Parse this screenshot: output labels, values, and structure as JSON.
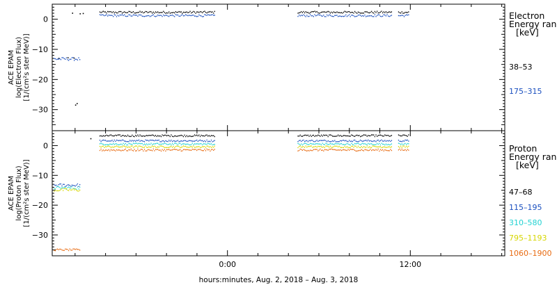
{
  "chart_data": [
    {
      "type": "scatter",
      "ylabel": [
        "ACE EPAM",
        "log(Electron Flux)",
        "[1/(cm²s ster MeV)]"
      ],
      "ylim": [
        -37,
        5
      ],
      "yticks": [
        0,
        -10,
        -20,
        -30
      ],
      "xlim": [
        -11.5,
        18.2
      ],
      "legend_title": [
        "Electron",
        "Energy range",
        "[keV]"
      ],
      "series": [
        {
          "name": "38–53",
          "color": "#000000",
          "segments": [
            {
              "x": [
                -8.4,
                -0.8
              ],
              "y": 2.3,
              "jitter": 0.35
            },
            {
              "x": [
                4.6,
                10.8
              ],
              "y": 2.3,
              "jitter": 0.35
            },
            {
              "x": [
                11.2,
                11.9
              ],
              "y": 2.3,
              "jitter": 0.35
            }
          ],
          "points": [
            [
              -10.2,
              2.0
            ],
            [
              -9.7,
              1.8
            ],
            [
              -9.5,
              1.9
            ],
            [
              -11.1,
              -13.0
            ],
            [
              -10.5,
              -12.8
            ],
            [
              -10.1,
              -12.9
            ],
            [
              -9.9,
              -28.0
            ],
            [
              -10.0,
              -28.5
            ]
          ]
        },
        {
          "name": "175–315",
          "color": "#1a4fbf",
          "segments": [
            {
              "x": [
                -11.4,
                -9.7
              ],
              "y": -13.2,
              "jitter": 0.5
            },
            {
              "x": [
                -8.4,
                -0.8
              ],
              "y": 1.2,
              "jitter": 0.35
            },
            {
              "x": [
                4.6,
                10.8
              ],
              "y": 1.2,
              "jitter": 0.35
            },
            {
              "x": [
                11.2,
                11.9
              ],
              "y": 1.2,
              "jitter": 0.35
            }
          ],
          "points": []
        }
      ],
      "extra_ticks_left": [
        -36.8
      ]
    },
    {
      "type": "scatter",
      "ylabel": [
        "ACE EPAM",
        "log(Proton Flux)",
        "[1/(cm²s ster MeV)]"
      ],
      "ylim": [
        -37,
        5
      ],
      "yticks": [
        0,
        -10,
        -20,
        -30
      ],
      "xlim": [
        -11.5,
        18.2
      ],
      "legend_title": [
        "Proton",
        "Energy range",
        "[keV]"
      ],
      "series": [
        {
          "name": "47–68",
          "color": "#000000",
          "segments": [
            {
              "x": [
                -8.4,
                -0.8
              ],
              "y": 3.3,
              "jitter": 0.3
            },
            {
              "x": [
                4.6,
                10.8
              ],
              "y": 3.3,
              "jitter": 0.3
            },
            {
              "x": [
                11.2,
                11.9
              ],
              "y": 3.3,
              "jitter": 0.3
            }
          ],
          "points": [
            [
              -9.0,
              2.3
            ]
          ]
        },
        {
          "name": "115–195",
          "color": "#1a4fbf",
          "segments": [
            {
              "x": [
                -11.4,
                -9.7
              ],
              "y": -13.3,
              "jitter": 0.5
            },
            {
              "x": [
                -8.4,
                -0.8
              ],
              "y": 1.6,
              "jitter": 0.3
            },
            {
              "x": [
                4.6,
                10.8
              ],
              "y": 1.6,
              "jitter": 0.3
            },
            {
              "x": [
                11.2,
                11.9
              ],
              "y": 1.6,
              "jitter": 0.3
            }
          ],
          "points": []
        },
        {
          "name": "310–580",
          "color": "#21d2d2",
          "segments": [
            {
              "x": [
                -11.4,
                -9.7
              ],
              "y": -14.2,
              "jitter": 0.5
            },
            {
              "x": [
                -8.4,
                -0.8
              ],
              "y": 0.5,
              "jitter": 0.3
            },
            {
              "x": [
                4.6,
                10.8
              ],
              "y": 0.5,
              "jitter": 0.3
            },
            {
              "x": [
                11.2,
                11.9
              ],
              "y": 0.5,
              "jitter": 0.3
            }
          ],
          "points": []
        },
        {
          "name": "795–1193",
          "color": "#d6d600",
          "segments": [
            {
              "x": [
                -11.4,
                -9.7
              ],
              "y": -14.9,
              "jitter": 0.5
            },
            {
              "x": [
                -8.4,
                -0.8
              ],
              "y": -0.4,
              "jitter": 0.3
            },
            {
              "x": [
                4.6,
                10.8
              ],
              "y": -0.4,
              "jitter": 0.3
            },
            {
              "x": [
                11.2,
                11.9
              ],
              "y": -0.4,
              "jitter": 0.3
            }
          ],
          "points": []
        },
        {
          "name": "1060–1900",
          "color": "#e86a10",
          "segments": [
            {
              "x": [
                -11.4,
                -9.7
              ],
              "y": -35.0,
              "jitter": 0.3
            },
            {
              "x": [
                -8.4,
                -0.8
              ],
              "y": -1.5,
              "jitter": 0.35
            },
            {
              "x": [
                4.6,
                10.8
              ],
              "y": -1.5,
              "jitter": 0.35
            },
            {
              "x": [
                11.2,
                11.9
              ],
              "y": -1.5,
              "jitter": 0.35
            }
          ],
          "points": []
        }
      ]
    }
  ],
  "xaxis": {
    "tick_labels": [
      {
        "x": 0,
        "label": "0:00"
      },
      {
        "x": 12,
        "label": "12:00"
      }
    ],
    "minor_step_hours": 2,
    "xlabel": "hours:minutes, Aug.  2, 2018 – Aug.  3, 2018"
  }
}
